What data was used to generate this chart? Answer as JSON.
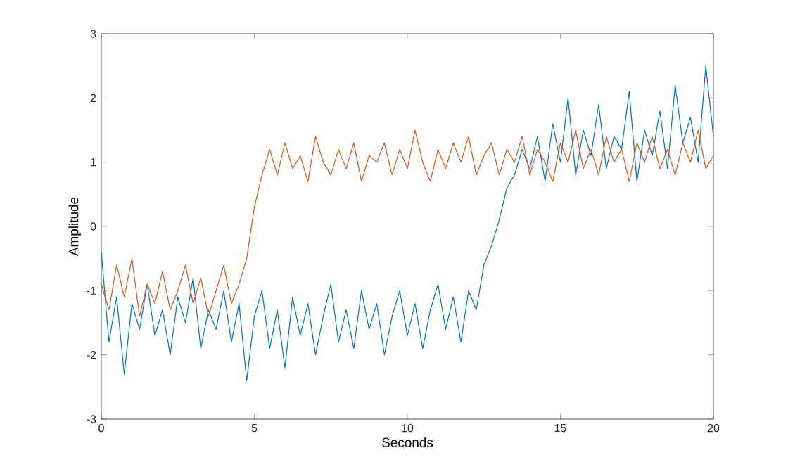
{
  "chart_data": {
    "type": "line",
    "xlabel": "Seconds",
    "ylabel": "Amplitude",
    "x": [
      0,
      0.25,
      0.5,
      0.75,
      1,
      1.25,
      1.5,
      1.75,
      2,
      2.25,
      2.5,
      2.75,
      3,
      3.25,
      3.5,
      3.75,
      4,
      4.25,
      4.5,
      4.75,
      5,
      5.25,
      5.5,
      5.75,
      6,
      6.25,
      6.5,
      6.75,
      7,
      7.25,
      7.5,
      7.75,
      8,
      8.25,
      8.5,
      8.75,
      9,
      9.25,
      9.5,
      9.75,
      10,
      10.25,
      10.5,
      10.75,
      11,
      11.25,
      11.5,
      11.75,
      12,
      12.25,
      12.5,
      12.75,
      13,
      13.25,
      13.5,
      13.75,
      14,
      14.25,
      14.5,
      14.75,
      15,
      15.25,
      15.5,
      15.75,
      16,
      16.25,
      16.5,
      16.75,
      17,
      17.25,
      17.5,
      17.75,
      18,
      18.25,
      18.5,
      18.75,
      19,
      19.25,
      19.5,
      19.75,
      20
    ],
    "series": [
      {
        "color": "#0072bd",
        "values": [
          -0.4,
          -1.8,
          -1.1,
          -2.3,
          -1.2,
          -1.6,
          -0.9,
          -1.7,
          -1.3,
          -2.0,
          -1.1,
          -1.5,
          -0.8,
          -1.9,
          -1.3,
          -1.6,
          -1.0,
          -1.8,
          -1.2,
          -2.4,
          -1.4,
          -1.0,
          -1.9,
          -1.3,
          -2.2,
          -1.1,
          -1.7,
          -1.2,
          -2.0,
          -1.4,
          -0.9,
          -1.8,
          -1.3,
          -1.9,
          -1.0,
          -1.6,
          -1.2,
          -2.0,
          -1.4,
          -1.0,
          -1.7,
          -1.2,
          -1.9,
          -1.3,
          -0.9,
          -1.6,
          -1.1,
          -1.8,
          -1.0,
          -1.3,
          -0.6,
          -0.3,
          0.1,
          0.6,
          0.8,
          1.2,
          0.9,
          1.4,
          0.7,
          1.6,
          1.0,
          2.0,
          0.8,
          1.5,
          1.1,
          1.9,
          0.9,
          1.4,
          1.2,
          2.1,
          0.7,
          1.5,
          1.1,
          1.8,
          0.9,
          2.2,
          1.3,
          1.7,
          1.0,
          2.5,
          1.4
        ]
      },
      {
        "color": "#d95319",
        "values": [
          -0.9,
          -1.3,
          -0.6,
          -1.1,
          -0.5,
          -1.4,
          -0.9,
          -1.2,
          -0.7,
          -1.3,
          -1.0,
          -0.6,
          -1.2,
          -0.8,
          -1.4,
          -1.0,
          -0.6,
          -1.2,
          -0.9,
          -0.5,
          0.3,
          0.8,
          1.2,
          0.8,
          1.3,
          0.9,
          1.1,
          0.7,
          1.4,
          1.0,
          0.8,
          1.2,
          0.9,
          1.3,
          0.7,
          1.1,
          1.0,
          1.3,
          0.8,
          1.2,
          0.9,
          1.5,
          1.0,
          0.7,
          1.2,
          0.9,
          1.3,
          1.0,
          1.4,
          0.8,
          1.1,
          1.3,
          0.8,
          1.2,
          1.0,
          1.4,
          0.8,
          1.2,
          1.0,
          0.7,
          1.3,
          1.0,
          1.5,
          0.9,
          1.2,
          0.8,
          1.4,
          1.0,
          1.2,
          0.7,
          1.3,
          1.0,
          1.4,
          0.9,
          1.2,
          0.8,
          1.3,
          1.0,
          1.5,
          0.9,
          1.1
        ]
      }
    ],
    "xlim": [
      0,
      20
    ],
    "ylim": [
      -3,
      3
    ],
    "xticks": [
      0,
      5,
      10,
      15,
      20
    ],
    "yticks": [
      -3,
      -2,
      -1,
      0,
      1,
      2,
      3
    ]
  }
}
